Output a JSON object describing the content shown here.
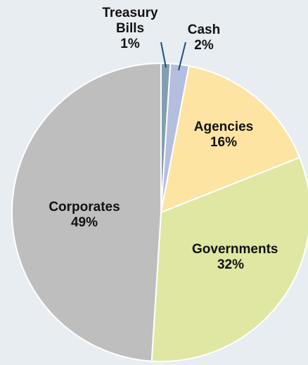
{
  "chart_data": {
    "type": "pie",
    "categories": [
      "Treasury Bills",
      "Cash",
      "Agencies",
      "Governments",
      "Corporates"
    ],
    "values": [
      1,
      2,
      16,
      32,
      49
    ],
    "value_labels": [
      "1%",
      "2%",
      "16%",
      "32%",
      "49%"
    ],
    "colors": [
      "#819fb0",
      "#b4bedf",
      "#fde4a3",
      "#dfe7a3",
      "#bebebe"
    ]
  }
}
